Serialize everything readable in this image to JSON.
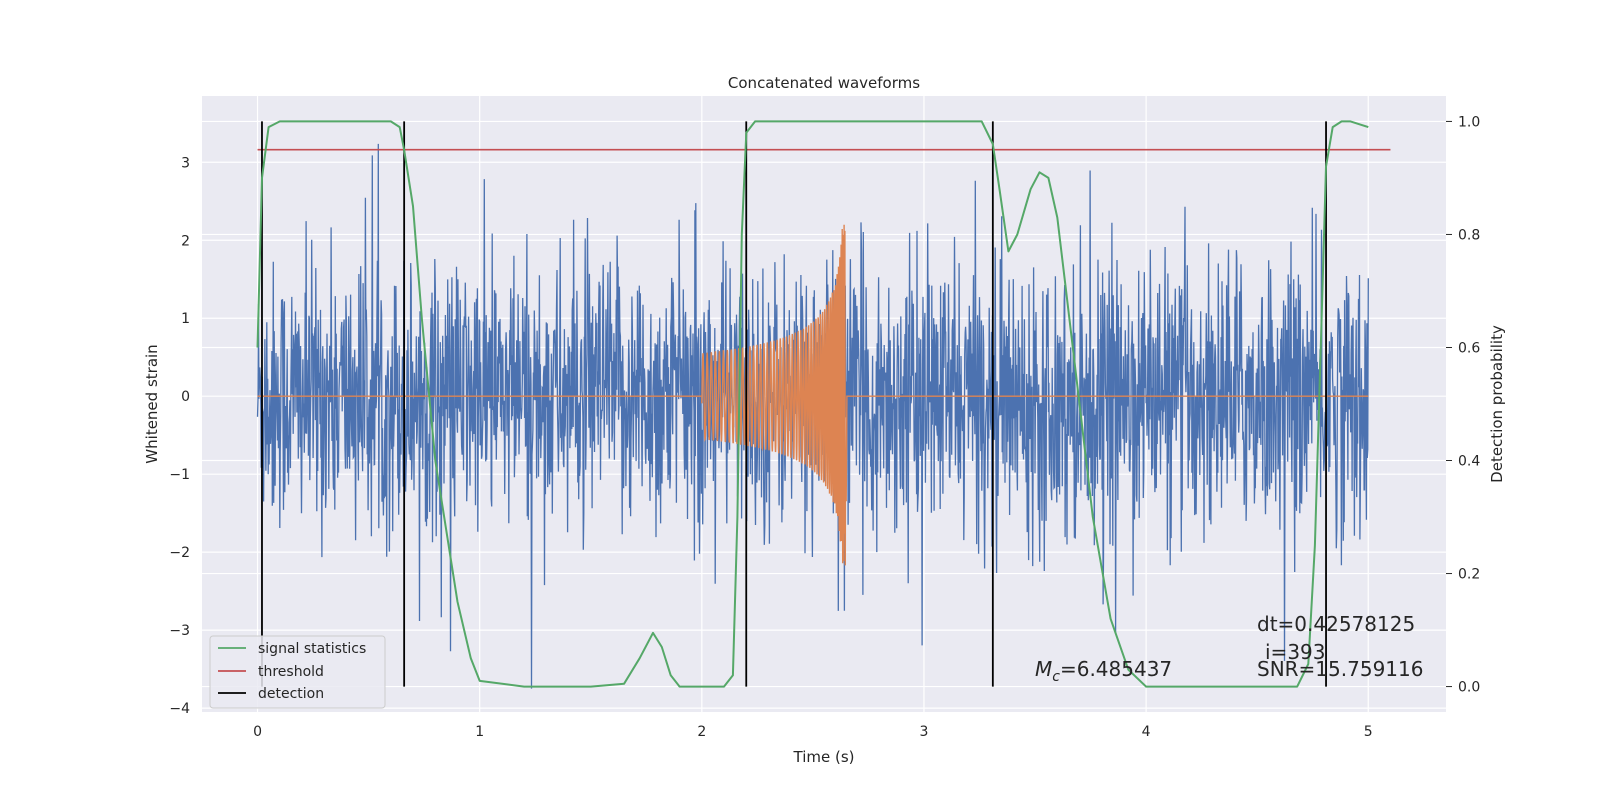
{
  "chart_data": {
    "type": "line",
    "title": "Concatenated waveforms",
    "xlabel": "Time (s)",
    "ylabel": "Whitened strain",
    "y2label": "Detection probability",
    "xlim": [
      -0.25,
      5.35
    ],
    "ylim": [
      -4.05,
      3.85
    ],
    "y2lim": [
      -0.045,
      1.045
    ],
    "xticks": [
      0,
      1,
      2,
      3,
      4,
      5
    ],
    "yticks": [
      -4,
      -3,
      -2,
      -1,
      0,
      1,
      2,
      3
    ],
    "y2ticks": [
      0.0,
      0.2,
      0.4,
      0.6,
      0.8,
      1.0
    ],
    "xtick_labels": [
      "0",
      "1",
      "2",
      "3",
      "4",
      "5"
    ],
    "ytick_labels": [
      "−4",
      "−3",
      "−2",
      "−1",
      "0",
      "1",
      "2",
      "3"
    ],
    "y2tick_labels": [
      "0.0",
      "0.2",
      "0.4",
      "0.6",
      "0.8",
      "1.0"
    ],
    "grid": true,
    "legend_position": "lower-left",
    "series": [
      {
        "name": "signal statistics",
        "axis": "right",
        "color": "#55a868",
        "x": [
          0.0,
          0.02,
          0.05,
          0.1,
          0.2,
          0.4,
          0.6,
          0.64,
          0.66,
          0.7,
          0.74,
          0.8,
          0.9,
          0.96,
          1.0,
          1.2,
          1.5,
          1.65,
          1.72,
          1.78,
          1.82,
          1.86,
          1.9,
          2.0,
          2.1,
          2.14,
          2.16,
          2.18,
          2.2,
          2.24,
          2.3,
          2.5,
          3.0,
          3.26,
          3.31,
          3.34,
          3.38,
          3.42,
          3.48,
          3.52,
          3.56,
          3.6,
          3.64,
          3.7,
          3.76,
          3.84,
          3.92,
          4.0,
          4.2,
          4.5,
          4.68,
          4.73,
          4.76,
          4.79,
          4.81,
          4.84,
          4.88,
          4.92,
          5.0
        ],
        "y": [
          0.6,
          0.9,
          0.99,
          1.0,
          1.0,
          1.0,
          1.0,
          0.99,
          0.95,
          0.85,
          0.65,
          0.4,
          0.15,
          0.05,
          0.01,
          0.0,
          0.0,
          0.005,
          0.05,
          0.095,
          0.07,
          0.02,
          0.0,
          0.0,
          0.0,
          0.02,
          0.3,
          0.8,
          0.98,
          1.0,
          1.0,
          1.0,
          1.0,
          1.0,
          0.96,
          0.88,
          0.77,
          0.8,
          0.88,
          0.91,
          0.9,
          0.83,
          0.7,
          0.5,
          0.3,
          0.12,
          0.03,
          0.0,
          0.0,
          0.0,
          0.0,
          0.04,
          0.25,
          0.65,
          0.92,
          0.99,
          1.0,
          1.0,
          0.99
        ]
      },
      {
        "name": "threshold",
        "axis": "right",
        "color": "#c44e52",
        "x": [
          0.0,
          5.1
        ],
        "y": [
          0.95,
          0.95
        ]
      },
      {
        "name": "detection",
        "type": "vlines",
        "color": "#000000",
        "x": [
          0.02,
          0.66,
          2.2,
          3.31,
          4.81
        ],
        "y_range": [
          0.0,
          1.0
        ]
      }
    ],
    "waveforms": [
      {
        "name": "whitened noise",
        "color": "#4c72b0",
        "t_start": 0.0,
        "t_end": 5.0
      },
      {
        "name": "injected signal",
        "color": "#dd8452",
        "t_start": 2.0,
        "t_end": 2.65
      }
    ],
    "annotations": [
      {
        "id": "mc",
        "prefix": "M",
        "sub": "c",
        "rest": "=6.485437"
      },
      {
        "id": "dt",
        "text": "dt=0.42578125"
      },
      {
        "id": "i",
        "text": "i=393"
      },
      {
        "id": "snr",
        "text": "SNR=15.759116"
      }
    ]
  }
}
